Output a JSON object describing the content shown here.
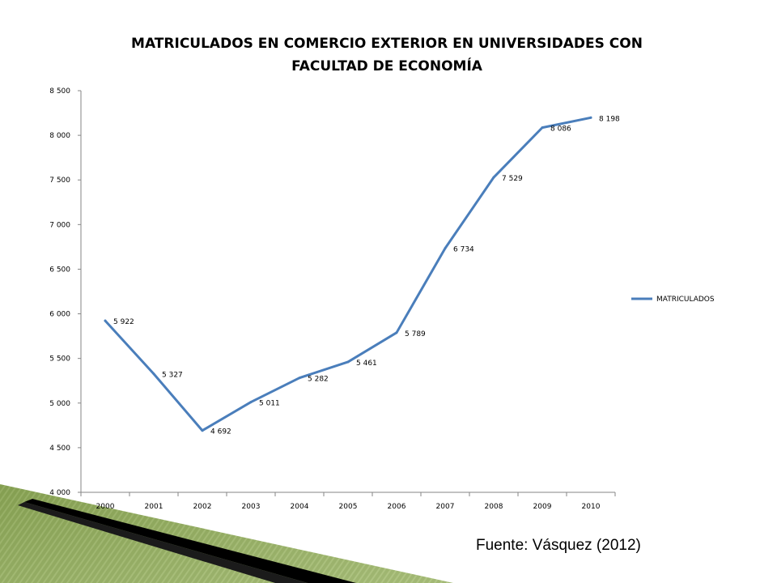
{
  "chart_data": {
    "type": "line",
    "title_lines": [
      "MATRICULADOS EN COMERCIO EXTERIOR EN UNIVERSIDADES CON",
      "FACULTAD DE ECONOMÍA"
    ],
    "x": [
      "2000",
      "2001",
      "2002",
      "2003",
      "2004",
      "2005",
      "2006",
      "2007",
      "2008",
      "2009",
      "2010"
    ],
    "series": [
      {
        "name": "MATRICULADOS",
        "values": [
          5922,
          5327,
          4692,
          5011,
          5282,
          5461,
          5789,
          6734,
          7529,
          8086,
          8198
        ],
        "labels": [
          "5 922",
          "5 327",
          "4 692",
          "5 011",
          "5 282",
          "5 461",
          "5 789",
          "6 734",
          "7 529",
          "8 086",
          "8 198"
        ],
        "color": "#4a7ebb"
      }
    ],
    "ylim": [
      4000,
      8500
    ],
    "yticks": [
      4000,
      4500,
      5000,
      5500,
      6000,
      6500,
      7000,
      7500,
      8000,
      8500
    ],
    "ytick_labels": [
      "4 000",
      "4 500",
      "5 000",
      "5 500",
      "6 000",
      "6 500",
      "7 000",
      "7 500",
      "8 000",
      "8 500"
    ],
    "grid": false,
    "legend_position": "right"
  },
  "source": "Fuente: Vásquez (2012)"
}
